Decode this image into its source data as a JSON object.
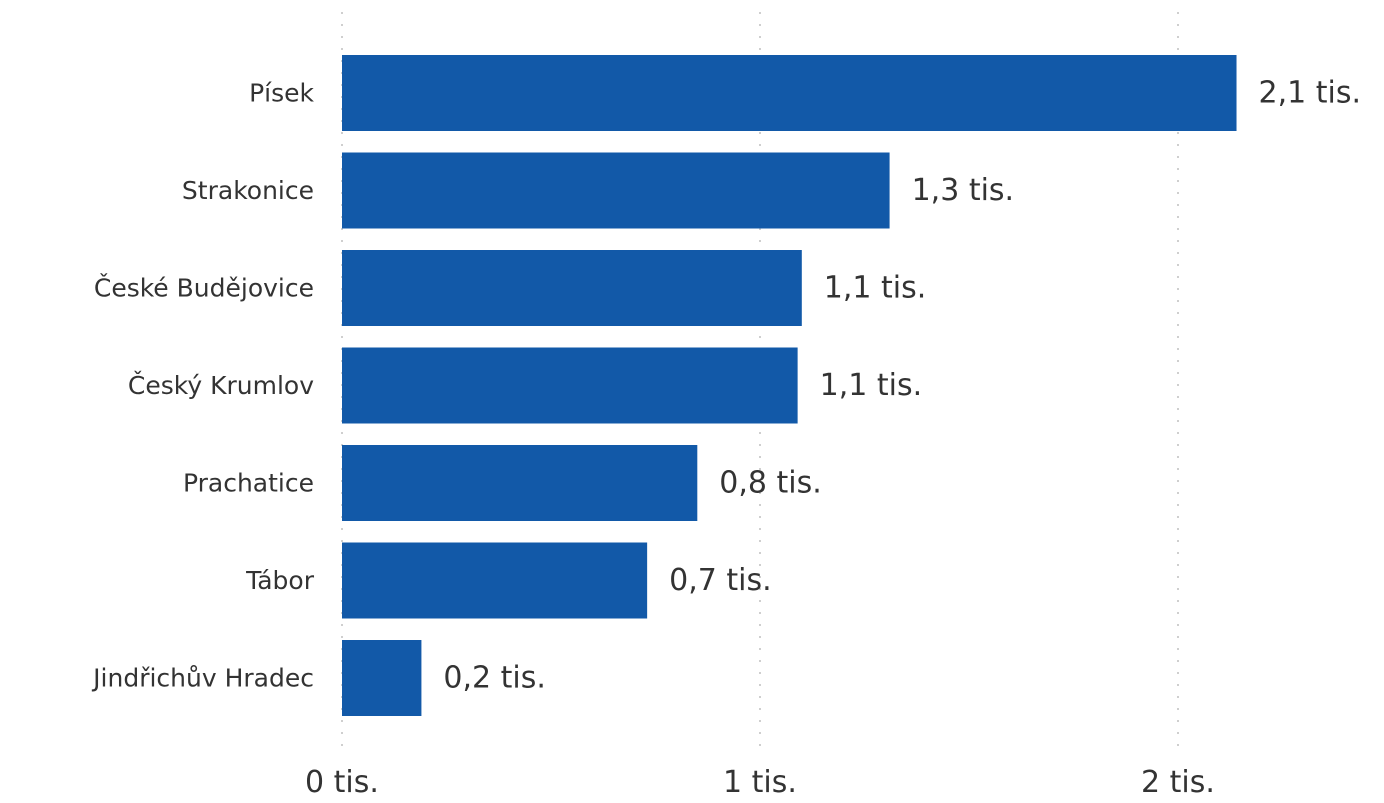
{
  "chart_data": {
    "type": "bar",
    "orientation": "horizontal",
    "categories": [
      "Písek",
      "Strakonice",
      "České Budějovice",
      "Český Krumlov",
      "Prachatice",
      "Tábor",
      "Jindřichův Hradec"
    ],
    "values": [
      2.14,
      1.31,
      1.1,
      1.09,
      0.85,
      0.73,
      0.19
    ],
    "value_labels": [
      "2,1 tis.",
      "1,3 tis.",
      "1,1 tis.",
      "1,1 tis.",
      "0,8 tis.",
      "0,7 tis.",
      "0,2 tis."
    ],
    "x_ticks": [
      0,
      1,
      2
    ],
    "x_tick_labels": [
      "0 tis.",
      "1 tis.",
      "2 tis."
    ],
    "xlim": [
      0,
      2.2
    ],
    "grid": "vertical dotted",
    "bar_color": "#1259a8",
    "title": "",
    "xlabel": "",
    "ylabel": ""
  }
}
